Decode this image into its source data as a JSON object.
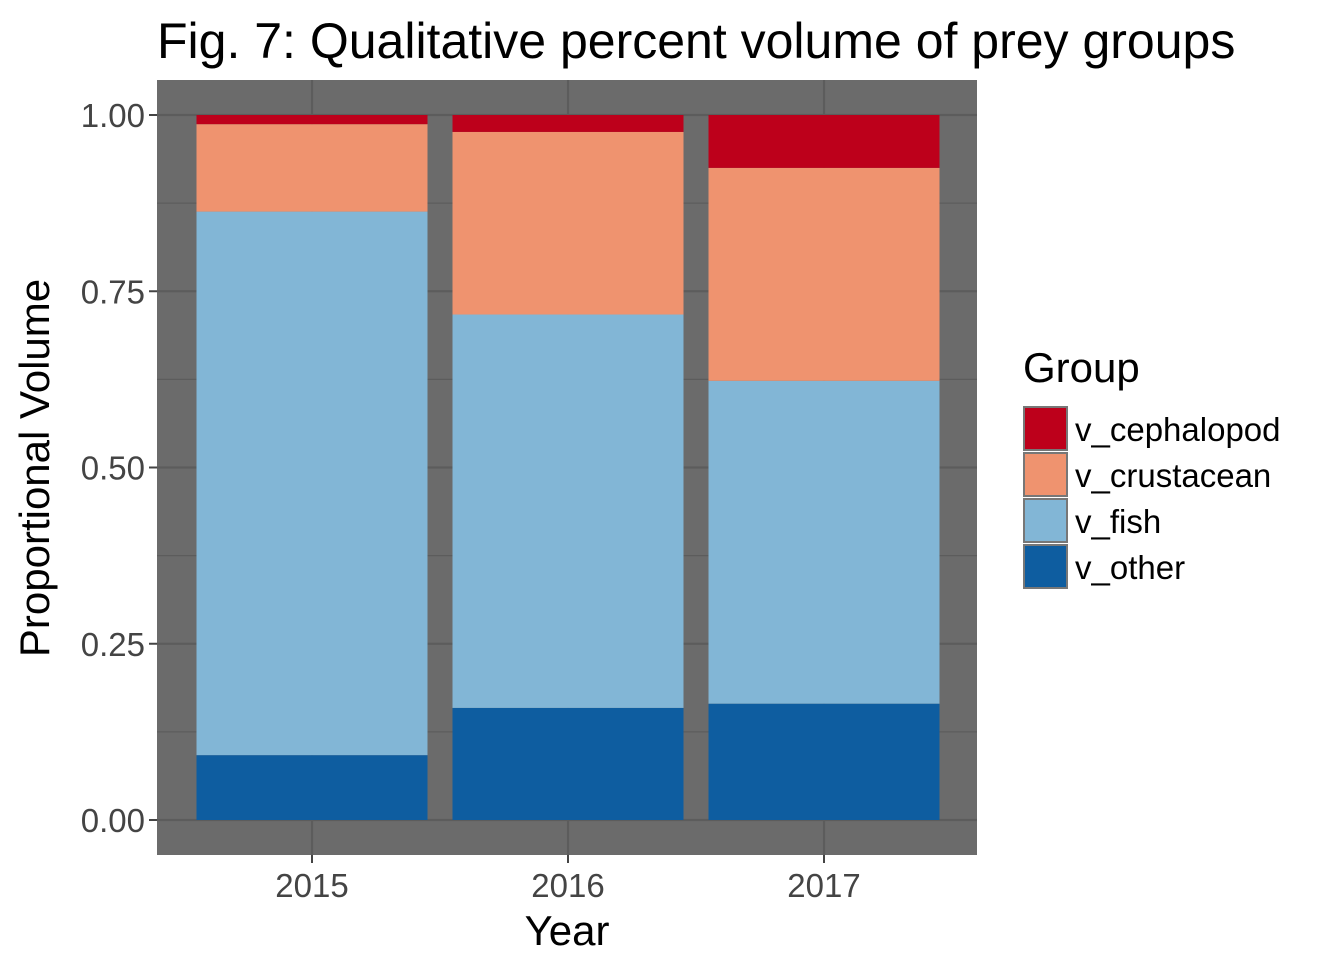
{
  "chart_data": {
    "type": "bar",
    "stacked": true,
    "title": "Fig. 7: Qualitative percent volume of prey groups",
    "xlabel": "Year",
    "ylabel": "Proportional Volume",
    "categories": [
      "2015",
      "2016",
      "2017"
    ],
    "ylim": [
      0,
      1
    ],
    "yticks": [
      "0.00",
      "0.25",
      "0.50",
      "0.75",
      "1.00"
    ],
    "ytick_values": [
      0,
      0.25,
      0.5,
      0.75,
      1.0
    ],
    "grid": true,
    "legend_position": "right",
    "legend_title": "Group",
    "panel_color": "#6b6b6b",
    "grid_color": "#5c5c5c",
    "series": [
      {
        "name": "v_other",
        "color": "#0e5da0",
        "values": [
          0.092,
          0.159,
          0.165
        ]
      },
      {
        "name": "v_fish",
        "color": "#82b6d6",
        "values": [
          0.771,
          0.558,
          0.458
        ]
      },
      {
        "name": "v_crustacean",
        "color": "#ef936f",
        "values": [
          0.124,
          0.259,
          0.302
        ]
      },
      {
        "name": "v_cephalopod",
        "color": "#bd001b",
        "values": [
          0.013,
          0.024,
          0.075
        ]
      }
    ],
    "legend_order": [
      "v_cephalopod",
      "v_crustacean",
      "v_fish",
      "v_other"
    ]
  }
}
